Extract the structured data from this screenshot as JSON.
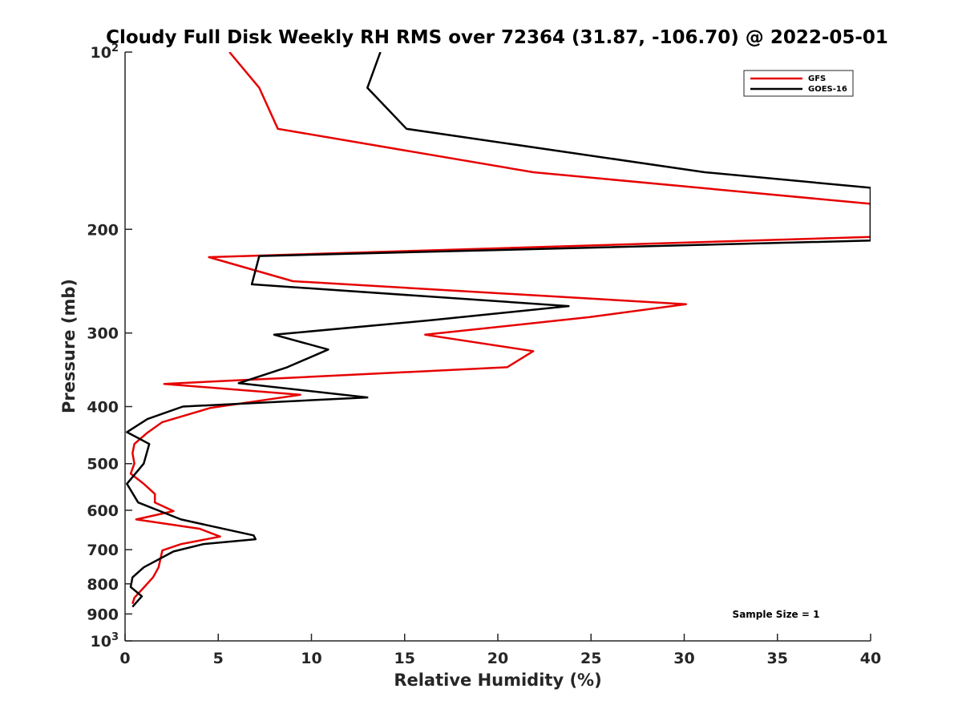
{
  "chart_data": {
    "type": "line",
    "title": "Cloudy Full Disk Weekly RH RMS over 72364 (31.87, -106.70) @ 2022-05-01",
    "xlabel": "Relative Humidity (%)",
    "ylabel": "Pressure (mb)",
    "xlim": [
      0,
      40
    ],
    "ylim": [
      100,
      1000
    ],
    "y_scale": "log",
    "y_reversed": true,
    "grid": false,
    "legend_position": "top-right",
    "x_ticks": [
      0,
      5,
      10,
      15,
      20,
      25,
      30,
      35,
      40
    ],
    "x_tick_labels": [
      "0",
      "5",
      "10",
      "15",
      "20",
      "25",
      "30",
      "35",
      "40"
    ],
    "y_ticks": [
      100,
      200,
      300,
      400,
      500,
      600,
      700,
      800,
      900,
      1000
    ],
    "y_tick_labels": [
      {
        "base": "10",
        "exp": "2"
      },
      {
        "base": "200",
        "exp": ""
      },
      {
        "base": "300",
        "exp": ""
      },
      {
        "base": "400",
        "exp": ""
      },
      {
        "base": "500",
        "exp": ""
      },
      {
        "base": "600",
        "exp": ""
      },
      {
        "base": "700",
        "exp": ""
      },
      {
        "base": "800",
        "exp": ""
      },
      {
        "base": "900",
        "exp": ""
      },
      {
        "base": "10",
        "exp": "3"
      }
    ],
    "series": [
      {
        "name": "GFS",
        "color": "#e60000",
        "points": [
          [
            5.6,
            100
          ],
          [
            7.2,
            115
          ],
          [
            8.2,
            135
          ],
          [
            21.9,
            160
          ],
          [
            40,
            181
          ],
          [
            40,
            206
          ],
          [
            4.5,
            223
          ],
          [
            9.0,
            245
          ],
          [
            30.1,
            268
          ],
          [
            24.9,
            282
          ],
          [
            16.1,
            302
          ],
          [
            21.9,
            322
          ],
          [
            20.5,
            343
          ],
          [
            2.1,
            366
          ],
          [
            9.4,
            382
          ],
          [
            4.6,
            402
          ],
          [
            2.0,
            425
          ],
          [
            1.2,
            443
          ],
          [
            0.5,
            463
          ],
          [
            0.4,
            480
          ],
          [
            0.5,
            500
          ],
          [
            0.3,
            520
          ],
          [
            1.0,
            541
          ],
          [
            1.6,
            563
          ],
          [
            1.6,
            582
          ],
          [
            2.6,
            602
          ],
          [
            0.6,
            622
          ],
          [
            4.0,
            645
          ],
          [
            5.1,
            665
          ],
          [
            3.0,
            685
          ],
          [
            2.0,
            702
          ],
          [
            1.8,
            750
          ],
          [
            1.5,
            780
          ],
          [
            1.0,
            812
          ],
          [
            0.5,
            845
          ],
          [
            0.4,
            865
          ]
        ]
      },
      {
        "name": "GOES-16",
        "color": "#000000",
        "points": [
          [
            13.7,
            100
          ],
          [
            13.0,
            115
          ],
          [
            15.1,
            135
          ],
          [
            31.1,
            160
          ],
          [
            40,
            170
          ],
          [
            40,
            209
          ],
          [
            7.2,
            222
          ],
          [
            6.8,
            248
          ],
          [
            23.8,
            270
          ],
          [
            16.6,
            285
          ],
          [
            8.0,
            302
          ],
          [
            10.9,
            320
          ],
          [
            8.7,
            343
          ],
          [
            6.1,
            365
          ],
          [
            13.0,
            386
          ],
          [
            3.1,
            400
          ],
          [
            1.2,
            420
          ],
          [
            0.1,
            442
          ],
          [
            1.3,
            463
          ],
          [
            1.0,
            500
          ],
          [
            0.1,
            541
          ],
          [
            0.7,
            582
          ],
          [
            3.0,
            622
          ],
          [
            6.9,
            662
          ],
          [
            7.0,
            672
          ],
          [
            4.2,
            685
          ],
          [
            2.6,
            705
          ],
          [
            1.0,
            750
          ],
          [
            0.4,
            780
          ],
          [
            0.3,
            810
          ],
          [
            0.9,
            840
          ],
          [
            0.4,
            875
          ]
        ]
      }
    ],
    "annotation": "Sample Size = 1"
  }
}
